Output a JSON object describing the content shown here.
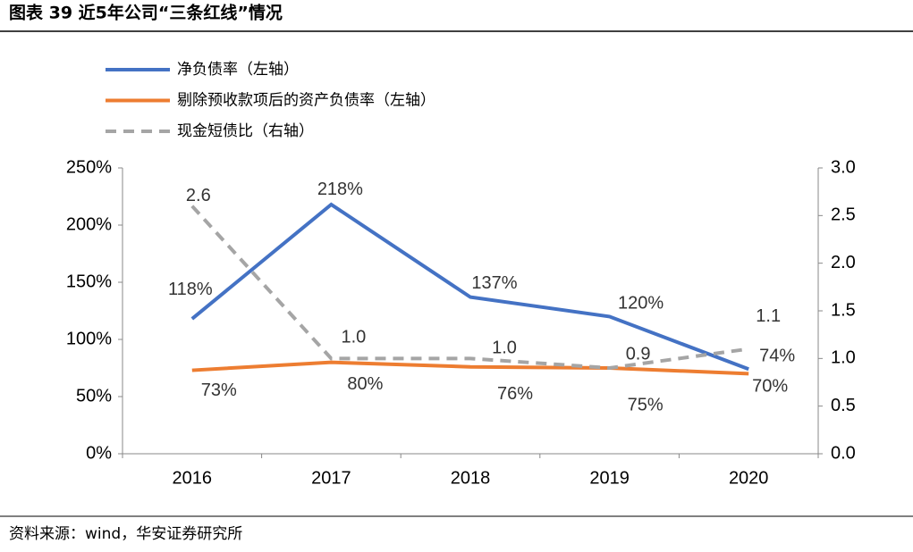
{
  "title": "图表 39 近5年公司“三条红线”情况",
  "source": "资料来源：wind，华安证券研究所",
  "chart_data": {
    "type": "line",
    "categories": [
      "2016",
      "2017",
      "2018",
      "2019",
      "2020"
    ],
    "series": [
      {
        "name": "净负债率（左轴）",
        "color": "#4472c4",
        "values": [
          118,
          218,
          137,
          120,
          74
        ],
        "value_labels": [
          "118%",
          "218%",
          "137%",
          "120%",
          "74%"
        ]
      },
      {
        "name": "剔除预收款项后的资产负债率（左轴）",
        "color": "#ed7d31",
        "values": [
          73,
          80,
          76,
          75,
          70
        ],
        "value_labels": [
          "73%",
          "80%",
          "76%",
          "75%",
          "70%"
        ]
      },
      {
        "name": "现金短债比（右轴）",
        "color": "#a5a5a5",
        "dashed": true,
        "axis": "y2",
        "values": [
          2.6,
          1.0,
          1.0,
          0.9,
          1.1
        ],
        "value_labels": [
          "2.6",
          "1.0",
          "1.0",
          "0.9",
          "1.1"
        ]
      }
    ],
    "ylim": [
      0,
      250
    ],
    "yticks": [
      {
        "value": 0,
        "label": "0%"
      },
      {
        "value": 50,
        "label": "50%"
      },
      {
        "value": 100,
        "label": "100%"
      },
      {
        "value": 150,
        "label": "150%"
      },
      {
        "value": 200,
        "label": "200%"
      },
      {
        "value": 250,
        "label": "250%"
      }
    ],
    "y2lim": [
      0,
      3
    ],
    "y2ticks": [
      {
        "value": 0,
        "label": "0.0"
      },
      {
        "value": 0.5,
        "label": "0.5"
      },
      {
        "value": 1,
        "label": "1.0"
      },
      {
        "value": 1.5,
        "label": "1.5"
      },
      {
        "value": 2,
        "label": "2.0"
      },
      {
        "value": 2.5,
        "label": "2.5"
      },
      {
        "value": 3,
        "label": "3.0"
      }
    ],
    "legend": "top-left"
  }
}
